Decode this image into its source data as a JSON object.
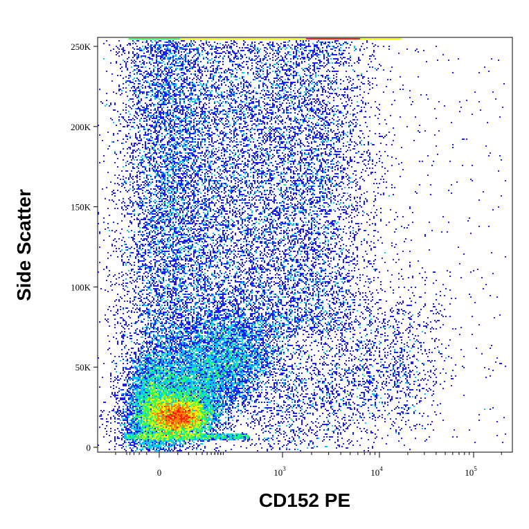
{
  "chart_data": {
    "type": "scatter",
    "plot_kind": "flow-cytometry density dot plot",
    "xlabel": "CD152 PE",
    "ylabel": "Side Scatter",
    "x_scale": "biexponential",
    "y_scale": "linear",
    "ylim": [
      0,
      262144
    ],
    "xlim": [
      -200,
      262144
    ],
    "y_ticks": [
      {
        "value": 0,
        "label": "0"
      },
      {
        "value": 50000,
        "label": "50K"
      },
      {
        "value": 100000,
        "label": "100K"
      },
      {
        "value": 150000,
        "label": "150K"
      },
      {
        "value": 200000,
        "label": "200K"
      },
      {
        "value": 250000,
        "label": "250K"
      }
    ],
    "x_ticks": [
      {
        "value": 0,
        "label": "0",
        "sup": ""
      },
      {
        "value": 1000,
        "label": "10",
        "sup": "3"
      },
      {
        "value": 10000,
        "label": "10",
        "sup": "4"
      },
      {
        "value": 100000,
        "label": "10",
        "sup": "5"
      }
    ],
    "density_color_scale": [
      "#1a1aff",
      "#00c8ff",
      "#30ff60",
      "#e8ff00",
      "#ff8000",
      "#ff1a00"
    ],
    "populations": [
      {
        "role": "dense core",
        "x_center": 30,
        "y_center": 20000,
        "density": "high"
      },
      {
        "role": "main body",
        "x_center": 200,
        "y_center": 40000,
        "density": "medium"
      },
      {
        "role": "upper side-scatter cloud",
        "x_center": 500,
        "y_center": 150000,
        "density": "low"
      },
      {
        "role": "positive tail",
        "x_center": 5000,
        "y_center": 80000,
        "density": "sparse"
      }
    ],
    "grid": false,
    "legend": "none"
  }
}
